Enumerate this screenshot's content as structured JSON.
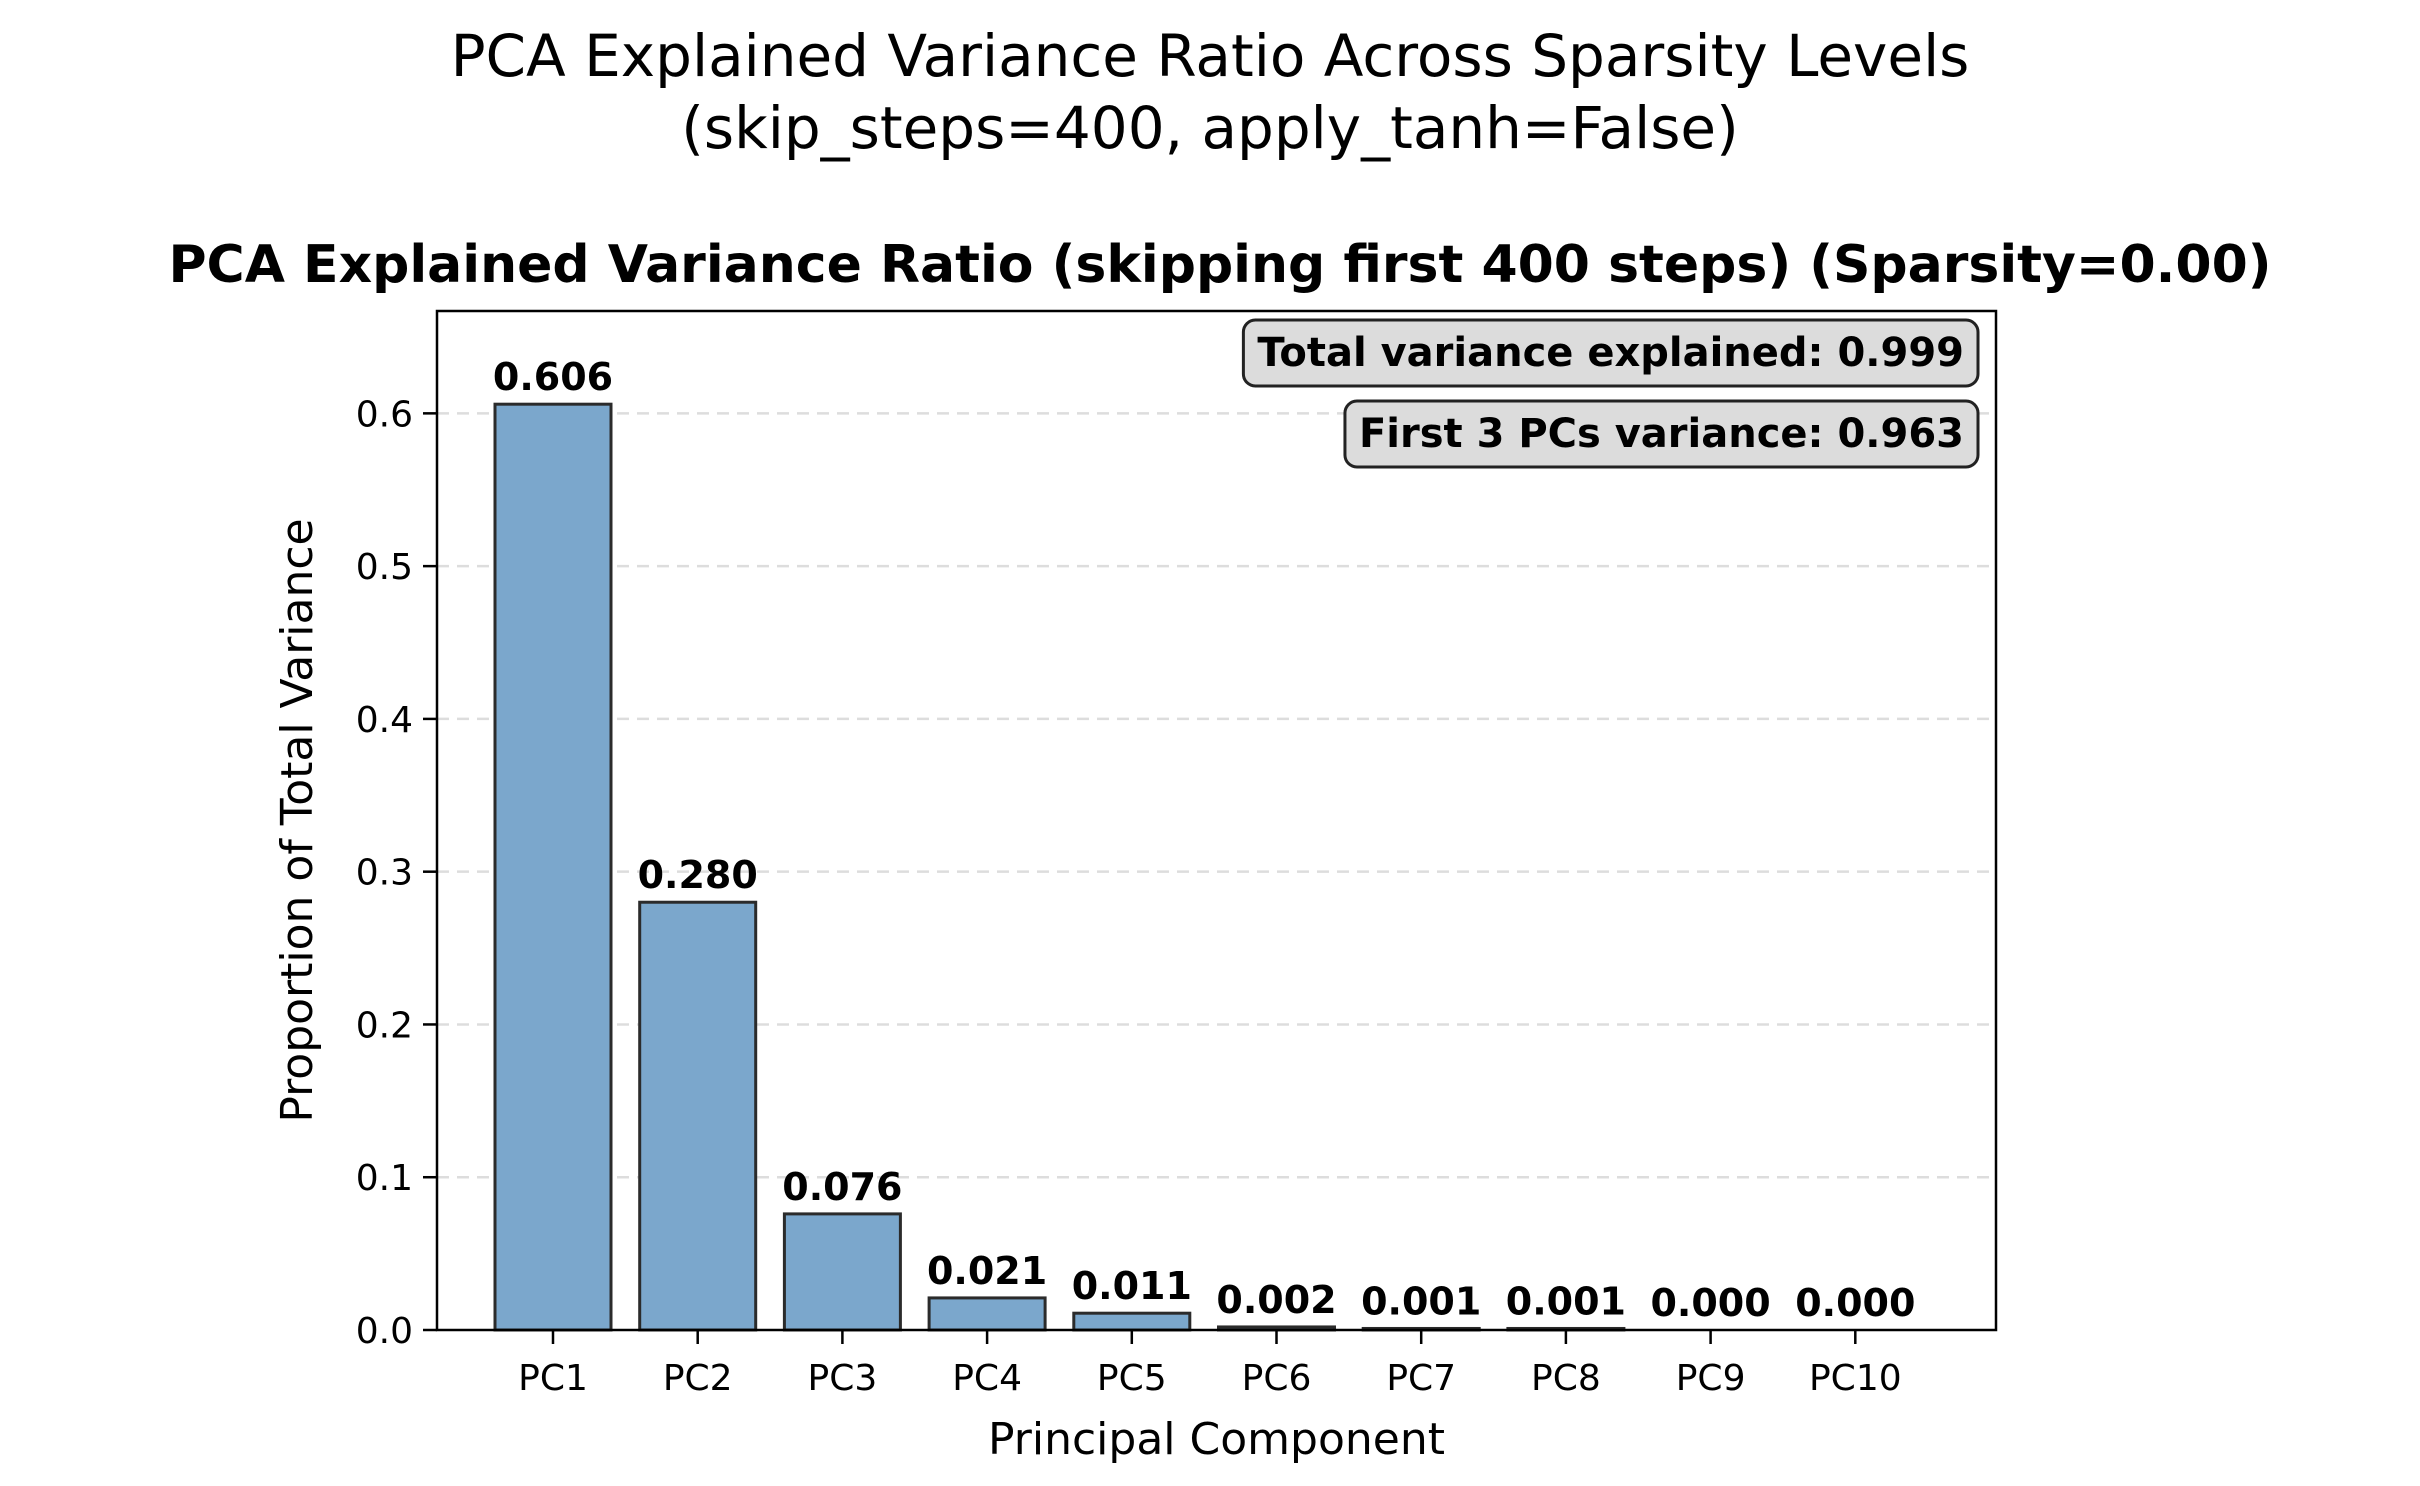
{
  "figure": {
    "suptitle_line1": "PCA Explained Variance Ratio Across Sparsity Levels",
    "suptitle_line2": "(skip_steps=400, apply_tanh=False)"
  },
  "chart_data": {
    "type": "bar",
    "title": "PCA Explained Variance Ratio (skipping first 400 steps) (Sparsity=0.00)",
    "xlabel": "Principal Component",
    "ylabel": "Proportion of Total Variance",
    "categories": [
      "PC1",
      "PC2",
      "PC3",
      "PC4",
      "PC5",
      "PC6",
      "PC7",
      "PC8",
      "PC9",
      "PC10"
    ],
    "values": [
      0.606,
      0.28,
      0.076,
      0.021,
      0.011,
      0.002,
      0.001,
      0.001,
      0.0,
      0.0
    ],
    "value_labels": [
      "0.606",
      "0.280",
      "0.076",
      "0.021",
      "0.011",
      "0.002",
      "0.001",
      "0.001",
      "0.000",
      "0.000"
    ],
    "ylim": [
      0,
      0.667
    ],
    "yticks": [
      0.0,
      0.1,
      0.2,
      0.3,
      0.4,
      0.5,
      0.6
    ],
    "ytick_labels": [
      "0.0",
      "0.1",
      "0.2",
      "0.3",
      "0.4",
      "0.5",
      "0.6"
    ],
    "grid": "y-dashed",
    "annotations": [
      "Total variance explained: 0.999",
      "First 3 PCs variance: 0.963"
    ],
    "annotation_placement": "top-right",
    "colors": {
      "bar_fill": "#7ba7cc",
      "bar_edge": "#2b2b2b",
      "grid": "#dddddd",
      "annotation_box": "#dcdcdc"
    }
  }
}
